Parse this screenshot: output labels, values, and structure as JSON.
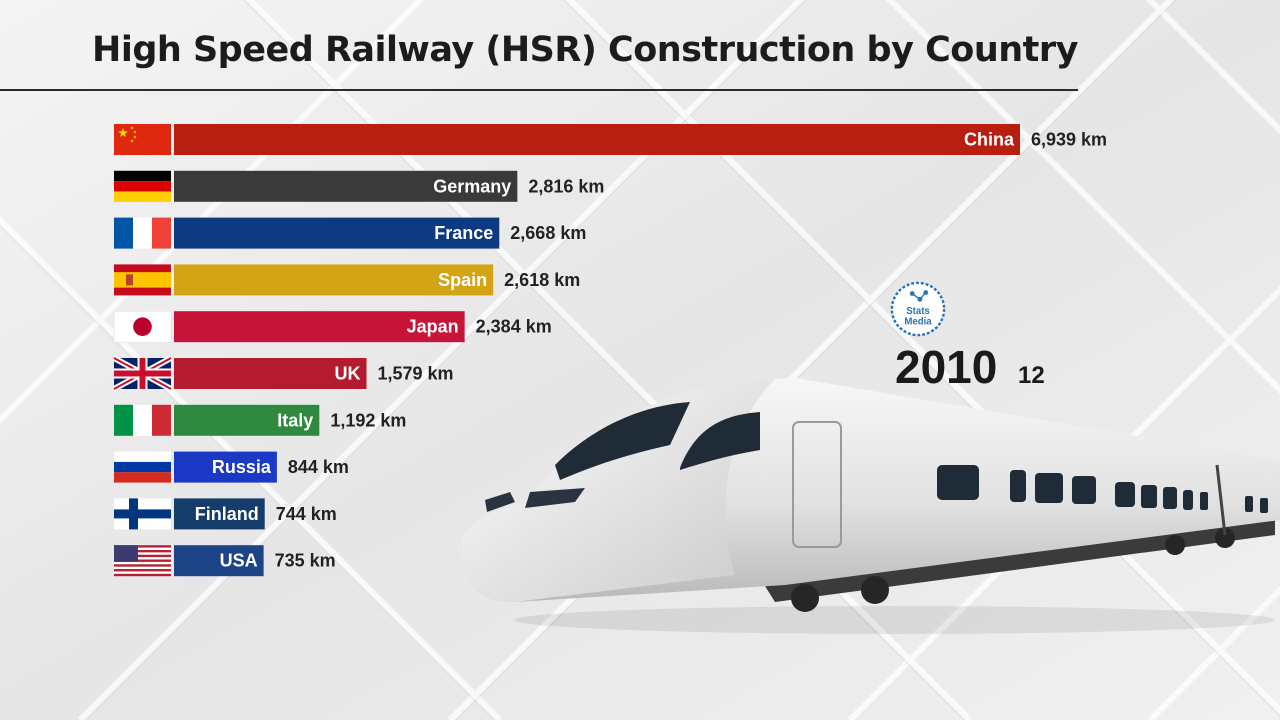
{
  "title": "High Speed Railway (HSR) Construction by Country",
  "date": {
    "year": "2010",
    "month": "12"
  },
  "logo_text": [
    "Stats",
    "Media"
  ],
  "chart_data": {
    "type": "bar",
    "orientation": "horizontal",
    "unit": "km",
    "categories": [
      "China",
      "Germany",
      "France",
      "Spain",
      "Japan",
      "UK",
      "Italy",
      "Russia",
      "Finland",
      "USA"
    ],
    "values": [
      6939,
      2816,
      2668,
      2618,
      2384,
      1579,
      1192,
      844,
      744,
      735
    ],
    "value_labels": [
      "6,939 km",
      "2,816 km",
      "2,668 km",
      "2,618 km",
      "2,384 km",
      "1,579 km",
      "1,192 km",
      "844 km",
      "744 km",
      "735 km"
    ],
    "colors": [
      "#b91f10",
      "#3a3a3a",
      "#0d3a80",
      "#d2a416",
      "#c7153a",
      "#b51b2f",
      "#2f8a3f",
      "#1b39c5",
      "#163c6b",
      "#1c4486"
    ],
    "flags": [
      "china-flag",
      "germany-flag",
      "france-flag",
      "spain-flag",
      "japan-flag",
      "uk-flag",
      "italy-flag",
      "russia-flag",
      "finland-flag",
      "usa-flag"
    ],
    "grid": false,
    "legend": "none"
  }
}
